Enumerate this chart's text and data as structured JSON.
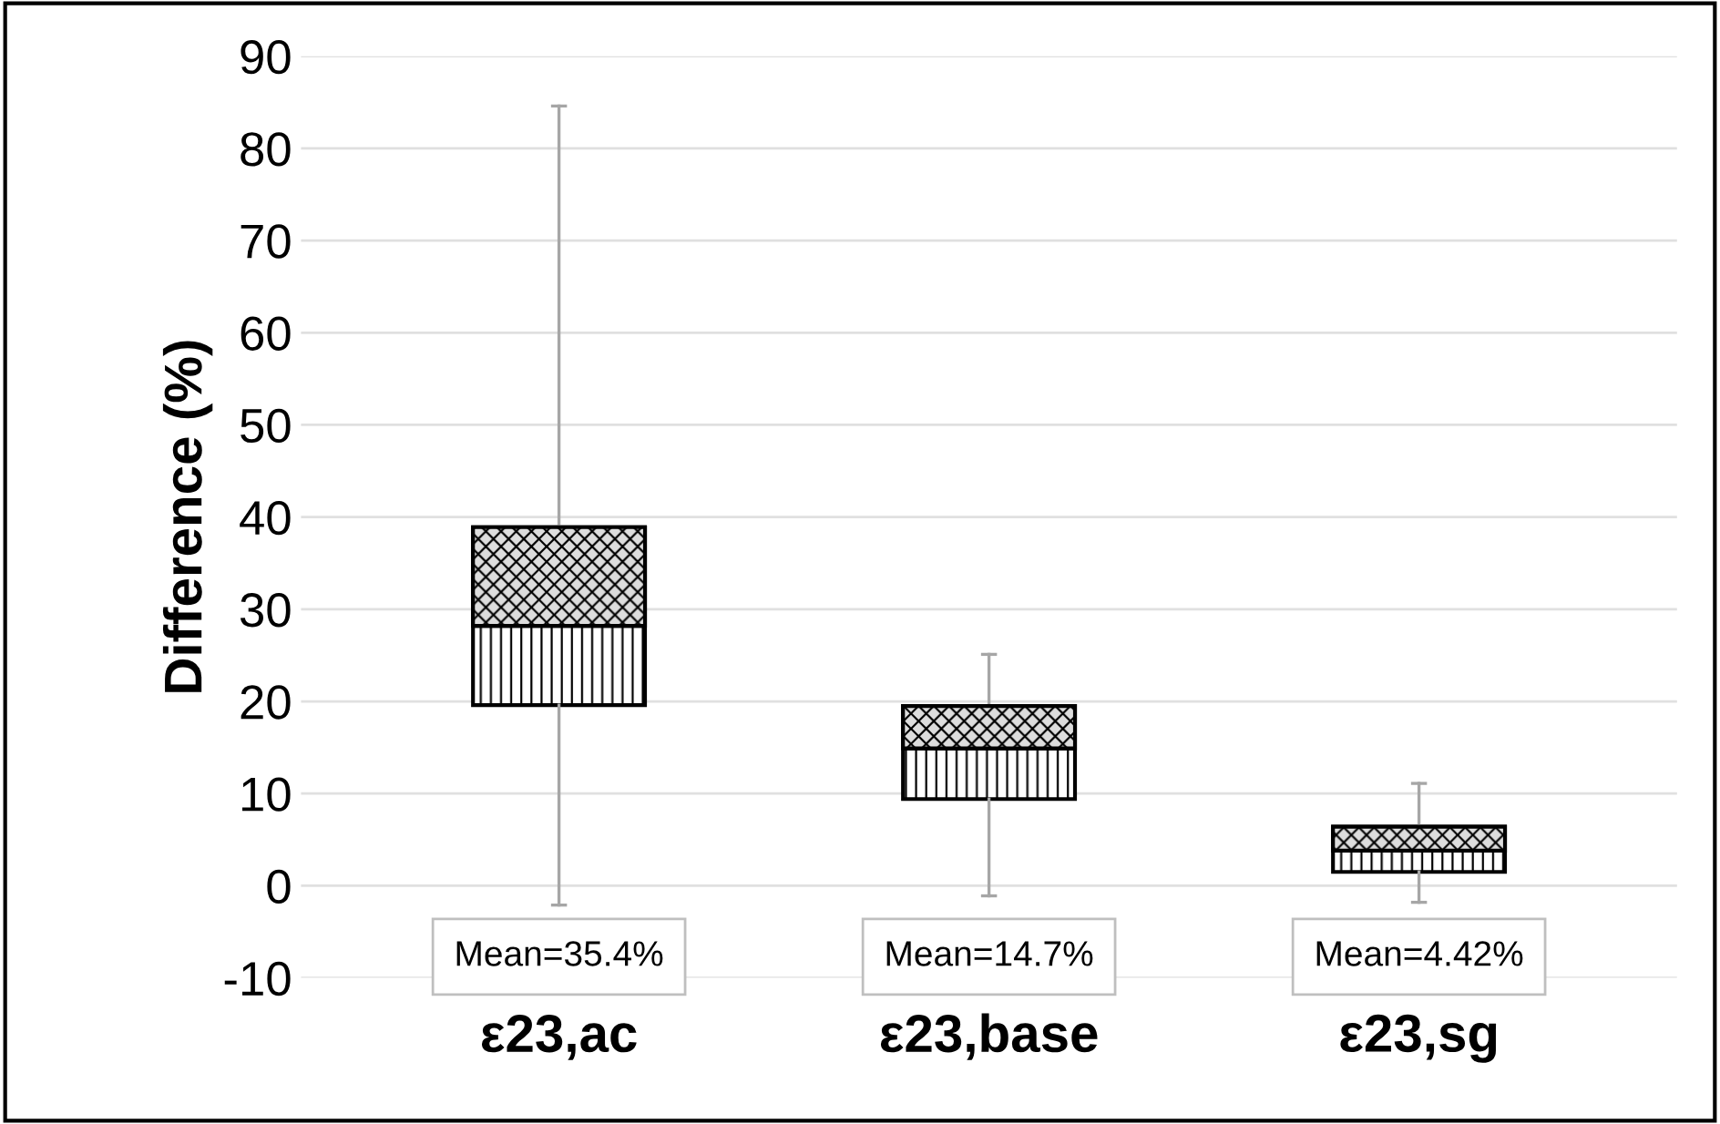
{
  "chart_data": {
    "type": "box",
    "ylabel": "Difference (%)",
    "categories": [
      "ε23,ac",
      "ε23,base",
      "ε23,sg"
    ],
    "boxes": [
      {
        "low": -2.1,
        "q1": 19.6,
        "median": 28.2,
        "q3": 38.9,
        "high": 84.6
      },
      {
        "low": -1.1,
        "q1": 9.4,
        "median": 14.9,
        "q3": 19.5,
        "high": 25.1
      },
      {
        "low": -1.8,
        "q1": 1.5,
        "median": 3.8,
        "q3": 6.4,
        "high": 11.1
      }
    ],
    "annotations": [
      "Mean=35.4%",
      "Mean=14.7%",
      "Mean=4.42%"
    ],
    "ylim": [
      -10,
      90
    ],
    "yticks": [
      -10,
      0,
      10,
      20,
      30,
      40,
      50,
      60,
      70,
      80,
      90
    ],
    "grid": "y"
  }
}
